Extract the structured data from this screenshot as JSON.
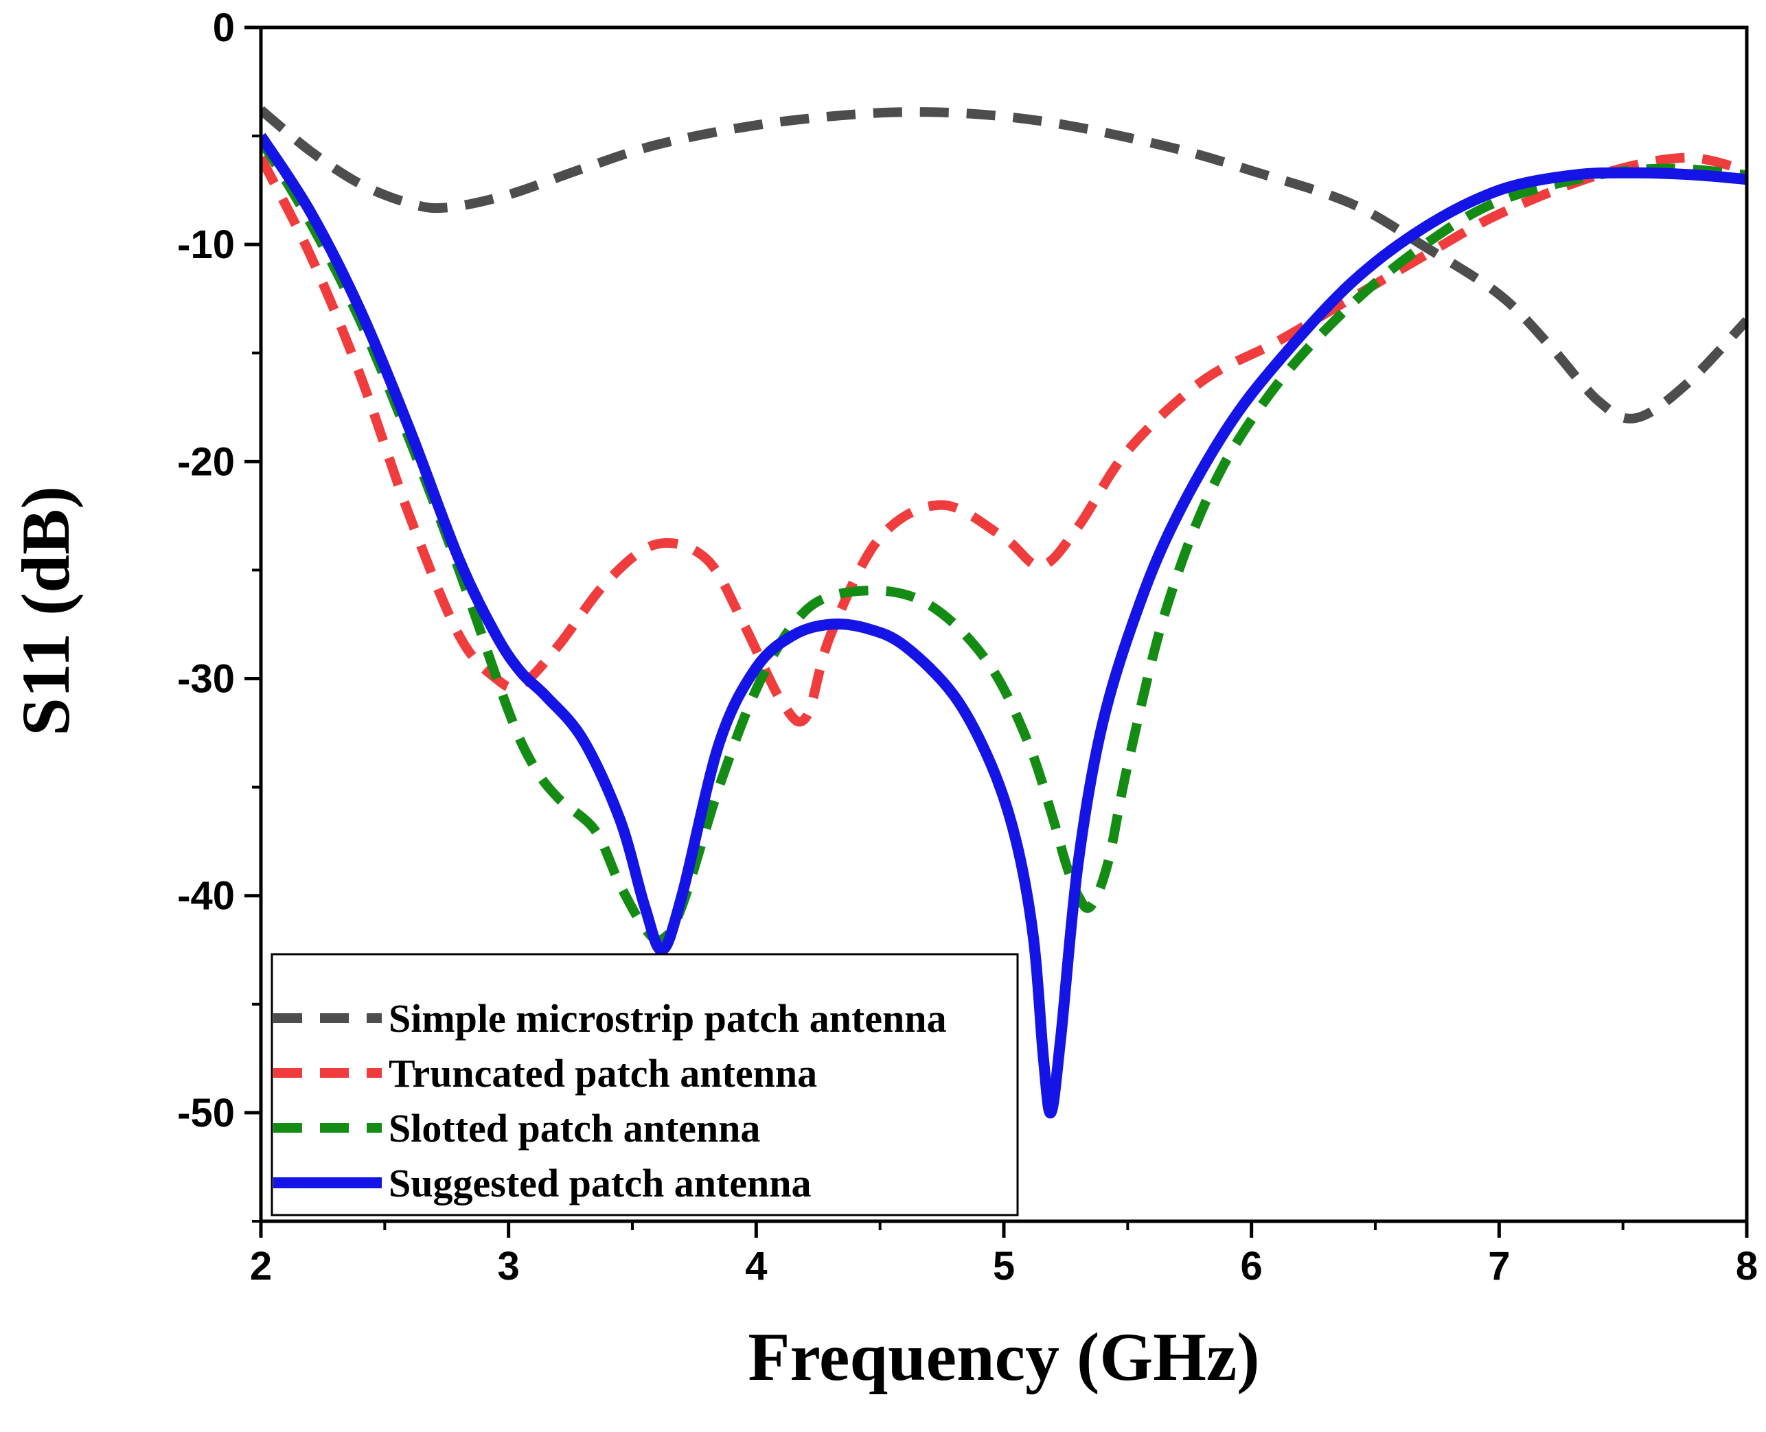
{
  "chart_data": {
    "type": "line",
    "xlabel": "Frequency (GHz)",
    "ylabel": "S11 (dB)",
    "xlim": [
      2,
      8
    ],
    "ylim": [
      -55,
      0
    ],
    "xticks": [
      2,
      3,
      4,
      5,
      6,
      7,
      8
    ],
    "yticks": [
      0,
      -10,
      -20,
      -30,
      -40,
      -50
    ],
    "xtick_labels": [
      "2",
      "3",
      "4",
      "5",
      "6",
      "7",
      "8"
    ],
    "ytick_labels": [
      "0",
      "-10",
      "-20",
      "-30",
      "-40",
      "-50"
    ],
    "legend_position": "bottom-left",
    "series": [
      {
        "name": "Simple microstrip patch antenna",
        "color": "#4d4d4d",
        "style": "dashed",
        "x": [
          2.0,
          2.2,
          2.4,
          2.6,
          2.75,
          3.0,
          3.3,
          3.6,
          4.0,
          4.4,
          4.7,
          5.0,
          5.3,
          5.7,
          6.0,
          6.4,
          6.7,
          7.0,
          7.2,
          7.4,
          7.55,
          7.75,
          8.0
        ],
        "y": [
          -3.8,
          -5.7,
          -7.2,
          -8.1,
          -8.3,
          -7.7,
          -6.5,
          -5.4,
          -4.5,
          -4.0,
          -3.9,
          -4.1,
          -4.6,
          -5.6,
          -6.6,
          -8.1,
          -10.1,
          -12.3,
          -14.6,
          -17.2,
          -18.0,
          -16.5,
          -13.5
        ]
      },
      {
        "name": "Truncated patch antenna",
        "color": "#f03c3c",
        "style": "dashed",
        "x": [
          2.0,
          2.2,
          2.4,
          2.6,
          2.8,
          2.95,
          3.05,
          3.2,
          3.4,
          3.6,
          3.8,
          3.95,
          4.1,
          4.2,
          4.3,
          4.5,
          4.75,
          5.0,
          5.15,
          5.3,
          5.5,
          5.8,
          6.1,
          6.4,
          6.7,
          7.0,
          7.4,
          7.75,
          8.0
        ],
        "y": [
          -6.0,
          -10.5,
          -16.0,
          -22.5,
          -28.0,
          -30.0,
          -30.3,
          -28.5,
          -25.5,
          -23.8,
          -24.5,
          -27.5,
          -31.0,
          -31.8,
          -28.0,
          -23.5,
          -22.0,
          -23.5,
          -24.8,
          -23.0,
          -19.5,
          -16.3,
          -14.5,
          -12.5,
          -10.5,
          -8.6,
          -6.8,
          -6.0,
          -6.6
        ]
      },
      {
        "name": "Slotted patch antenna",
        "color": "#148c14",
        "style": "dashed",
        "x": [
          2.0,
          2.2,
          2.4,
          2.6,
          2.8,
          3.0,
          3.1,
          3.2,
          3.35,
          3.45,
          3.55,
          3.62,
          3.7,
          3.85,
          4.0,
          4.15,
          4.3,
          4.55,
          4.75,
          4.95,
          5.1,
          5.2,
          5.25,
          5.3,
          5.35,
          5.42,
          5.5,
          5.65,
          5.85,
          6.1,
          6.4,
          6.7,
          7.0,
          7.4,
          7.7,
          8.0
        ],
        "y": [
          -5.2,
          -9.0,
          -13.5,
          -19.0,
          -25.0,
          -31.5,
          -34.0,
          -35.5,
          -37.0,
          -39.5,
          -41.5,
          -42.0,
          -40.5,
          -35.0,
          -30.5,
          -27.5,
          -26.2,
          -26.0,
          -27.0,
          -29.5,
          -33.0,
          -36.5,
          -38.5,
          -40.0,
          -40.5,
          -38.5,
          -34.0,
          -27.0,
          -21.0,
          -16.5,
          -12.8,
          -10.0,
          -8.0,
          -6.8,
          -6.5,
          -6.8
        ]
      },
      {
        "name": "Suggested patch antenna",
        "color": "#1414e6",
        "style": "solid",
        "x": [
          2.0,
          2.2,
          2.4,
          2.6,
          2.8,
          2.95,
          3.05,
          3.15,
          3.3,
          3.45,
          3.55,
          3.62,
          3.7,
          3.85,
          4.0,
          4.15,
          4.3,
          4.45,
          4.6,
          4.8,
          4.95,
          5.05,
          5.12,
          5.16,
          5.19,
          5.23,
          5.3,
          5.4,
          5.55,
          5.7,
          5.9,
          6.1,
          6.4,
          6.7,
          7.0,
          7.3,
          7.55,
          7.8,
          8.0
        ],
        "y": [
          -5.0,
          -8.5,
          -13.0,
          -18.5,
          -24.5,
          -28.0,
          -29.7,
          -30.8,
          -32.8,
          -36.5,
          -40.5,
          -42.5,
          -40.0,
          -33.0,
          -29.5,
          -28.0,
          -27.5,
          -27.7,
          -28.5,
          -30.8,
          -34.0,
          -37.5,
          -42.0,
          -47.5,
          -50.0,
          -46.5,
          -38.5,
          -32.0,
          -26.5,
          -22.5,
          -18.5,
          -15.5,
          -11.8,
          -9.2,
          -7.5,
          -6.8,
          -6.7,
          -6.8,
          -7.0
        ]
      }
    ]
  }
}
